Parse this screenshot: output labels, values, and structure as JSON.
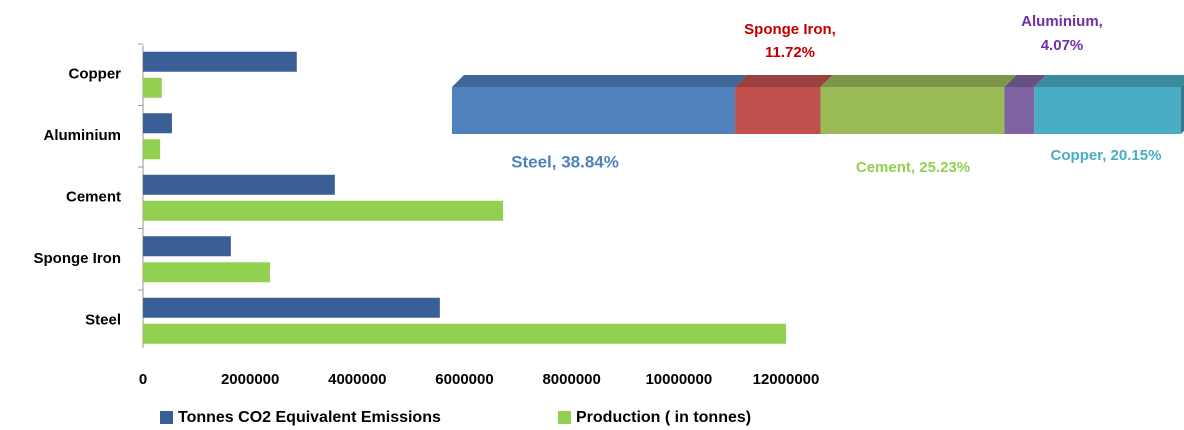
{
  "chart_data": [
    {
      "type": "hbar",
      "categories": [
        "Copper",
        "Aluminium",
        "Cement",
        "Sponge Iron",
        "Steel"
      ],
      "series": [
        {
          "name": "Tonnes CO2 Equivalent Emissions",
          "color": "#3a5f96",
          "values": [
            2870000,
            540000,
            3580000,
            1640000,
            5540000
          ]
        },
        {
          "name": "Production ( in tonnes)",
          "color": "#92d050",
          "values": [
            350000,
            320000,
            6720000,
            2370000,
            12000000
          ]
        }
      ],
      "xlim": [
        0,
        12000000
      ],
      "xticks": [
        0,
        2000000,
        4000000,
        6000000,
        8000000,
        10000000,
        12000000
      ],
      "legend": "bottom"
    },
    {
      "type": "stacked100",
      "values": [
        38.84,
        11.72,
        25.23,
        4.07,
        20.15
      ],
      "value_labels": [
        [
          "Steel, 38.84%"
        ],
        [
          "Sponge Iron,",
          "11.72%"
        ],
        [
          "Cement, 25.23%"
        ],
        [
          "Aluminium,",
          "4.07%"
        ],
        [
          "Copper, 20.15%"
        ]
      ],
      "colors": [
        "#4f81bd",
        "#c0504d",
        "#9bbb59",
        "#8064a2",
        "#4bacc6"
      ],
      "label_colors": [
        "#4f81bd",
        "#c00000",
        "#92d050",
        "#7030a0",
        "#4bacc6"
      ]
    }
  ]
}
